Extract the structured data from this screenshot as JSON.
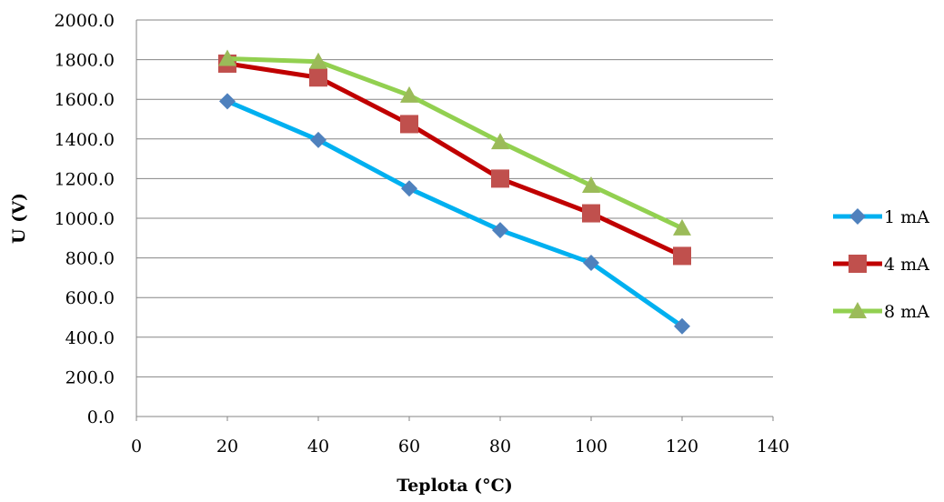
{
  "chart_data": {
    "type": "line",
    "xlabel": "Teplota (°C)",
    "ylabel": "U (V)",
    "xlim": [
      0,
      140
    ],
    "ylim": [
      0,
      2000
    ],
    "x_ticks": [
      "0",
      "20",
      "40",
      "60",
      "80",
      "100",
      "120",
      "140"
    ],
    "y_ticks": [
      "0.0",
      "200.0",
      "400.0",
      "600.0",
      "800.0",
      "1000.0",
      "1200.0",
      "1400.0",
      "1600.0",
      "1800.0",
      "2000.0"
    ],
    "grid": "horizontal",
    "legend_position": "right",
    "x": [
      20,
      40,
      60,
      80,
      100,
      120
    ],
    "series": [
      {
        "name": "1 mA",
        "values": [
          1590,
          1395,
          1150,
          940,
          775,
          455
        ],
        "line_color": "#00B0F0",
        "marker_color": "#4F81BD",
        "marker": "diamond"
      },
      {
        "name": "4 mA",
        "values": [
          1780,
          1710,
          1475,
          1200,
          1025,
          810
        ],
        "line_color": "#C00000",
        "marker_color": "#C0504D",
        "marker": "square"
      },
      {
        "name": "8 mA",
        "values": [
          1805,
          1790,
          1620,
          1385,
          1165,
          950
        ],
        "line_color": "#92D050",
        "marker_color": "#9BBB59",
        "marker": "triangle"
      }
    ]
  }
}
